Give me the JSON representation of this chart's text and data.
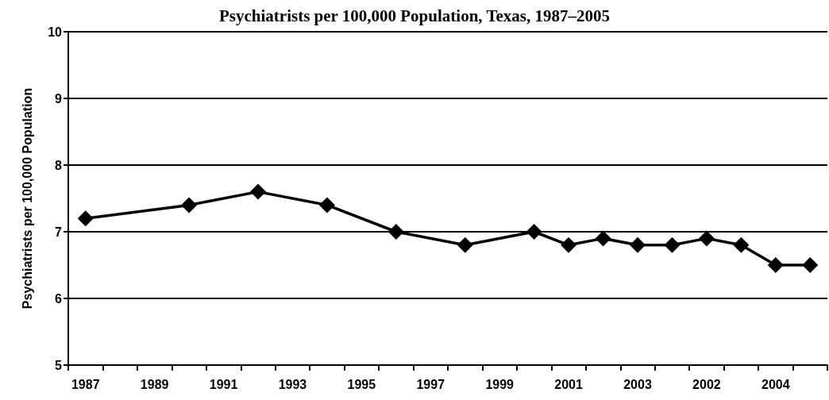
{
  "chart_data": {
    "type": "line",
    "title": "Psychiatrists per 100,000 Population, Texas, 1987–2005",
    "ylabel": "Psychiatrists per 100,000 Population",
    "categories": [
      "1987",
      null,
      "1989",
      null,
      "1991",
      null,
      "1993",
      null,
      "1995",
      null,
      "1997",
      null,
      "1999",
      null,
      "2001",
      null,
      "2003",
      null,
      "2002",
      null,
      "2004",
      null
    ],
    "series": [
      {
        "color": "#000000",
        "values": [
          7.2,
          null,
          null,
          7.4,
          null,
          7.6,
          null,
          7.4,
          null,
          7.0,
          null,
          6.8,
          null,
          7.0,
          6.8,
          6.9,
          6.8,
          6.8,
          6.9,
          6.8,
          6.5,
          6.5
        ]
      }
    ],
    "ylim": [
      5,
      10
    ],
    "yticks": [
      5,
      6,
      7,
      8,
      9,
      10
    ],
    "grid": "y",
    "marker": "diamond",
    "line_style": "solid"
  }
}
